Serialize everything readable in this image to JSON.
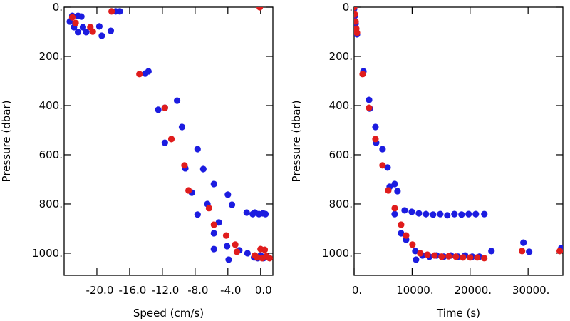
{
  "chart_data": [
    {
      "type": "scatter",
      "xlabel": "Speed (cm/s)",
      "ylabel": "Pressure (dbar)",
      "xlim": [
        -24,
        1.5
      ],
      "ylim": [
        0,
        1090
      ],
      "y_inverted": true,
      "xticks": [
        {
          "value": -20,
          "label": "-20.0"
        },
        {
          "value": -16,
          "label": "-16.0"
        },
        {
          "value": -12,
          "label": "-12.0"
        },
        {
          "value": -8,
          "label": "-8.0"
        },
        {
          "value": -4,
          "label": "-4.0"
        },
        {
          "value": 0,
          "label": "0.0"
        }
      ],
      "yticks": [
        {
          "value": 0,
          "label": "0."
        },
        {
          "value": 200,
          "label": "200."
        },
        {
          "value": 400,
          "label": "400."
        },
        {
          "value": 600,
          "label": "600."
        },
        {
          "value": 800,
          "label": "800."
        },
        {
          "value": 1000,
          "label": "1000."
        }
      ],
      "series": [
        {
          "color": "#1c1ce0",
          "x": [
            -23.3,
            -23,
            -22.3,
            -22.8,
            -21.9,
            -21.7,
            -21.3,
            -22.3,
            -19.7,
            -19.4,
            -18.3,
            -17.7,
            -17.2,
            -14.1,
            -13.7,
            -12.5,
            -11.7,
            -11.7,
            -10.2,
            -9.6,
            -9.2,
            -8.4,
            -7.7,
            -7.7,
            -7,
            -6.5,
            -5.7,
            -5.7,
            -5.1,
            -4,
            -3.5,
            -5.7,
            -4.1,
            -3.9,
            -2.6,
            -1.7,
            -1.6,
            -0.96,
            -0.7,
            -0.2,
            0.3,
            0.6,
            -0.8,
            -0.35,
            0,
            0.35,
            0.8
          ],
          "y": [
            58,
            35,
            35,
            81,
            38,
            81,
            101,
            101,
            78,
            116,
            96,
            17,
            17,
            270,
            261,
            417,
            409,
            551,
            380,
            487,
            655,
            754,
            577,
            843,
            658,
            800,
            719,
            919,
            875,
            762,
            803,
            983,
            971,
            1026,
            988,
            835,
            1000,
            841,
            835,
            841,
            838,
            841,
            1017,
            1020,
            1009,
            1020,
            1014
          ]
        },
        {
          "color": "#e01c1c",
          "x": [
            -23,
            -22.6,
            -20.8,
            -20.5,
            -18.2,
            -14.8,
            -11.7,
            -10.9,
            -9.3,
            -8.8,
            -6.3,
            -5.7,
            -4.2,
            -3.1,
            -2.9,
            -0.1,
            0,
            0.5,
            -0.7,
            -0.4,
            0.2,
            0.7,
            1.1
          ],
          "y": [
            41,
            64,
            81,
            99,
            17,
            272,
            409,
            536,
            643,
            745,
            817,
            884,
            928,
            965,
            994,
            0,
            983,
            986,
            1009,
            1017,
            1020,
            1012,
            1020
          ]
        }
      ]
    },
    {
      "type": "scatter",
      "xlabel": "Time (s)",
      "ylabel": "Pressure (dbar)",
      "xlim": [
        0,
        36000
      ],
      "ylim": [
        0,
        1090
      ],
      "y_inverted": true,
      "xticks": [
        {
          "value": 0,
          "label": "0."
        },
        {
          "value": 10000,
          "label": "10000."
        },
        {
          "value": 20000,
          "label": "20000."
        },
        {
          "value": 30000,
          "label": "30000."
        }
      ],
      "yticks": [
        {
          "value": 0,
          "label": "0."
        },
        {
          "value": 200,
          "label": "200."
        },
        {
          "value": 400,
          "label": "400."
        },
        {
          "value": 600,
          "label": "600."
        },
        {
          "value": 800,
          "label": "800."
        },
        {
          "value": 1000,
          "label": "1000."
        }
      ],
      "series": [
        {
          "color": "#1c1ce0",
          "x": [
            0,
            120,
            250,
            370,
            490,
            1600,
            2580,
            2700,
            3680,
            3800,
            4900,
            5770,
            6130,
            7000,
            7000,
            7480,
            8100,
            8710,
            8960,
            9940,
            10550,
            11170,
            10670,
            11780,
            12400,
            13000,
            13620,
            14230,
            14850,
            15460,
            16070,
            16690,
            17300,
            17910,
            18530,
            19140,
            19750,
            20370,
            20980,
            21600,
            22450,
            23680,
            29200,
            30180,
            35700
          ],
          "y": [
            6,
            35,
            67,
            101,
            110,
            261,
            377,
            412,
            487,
            551,
            577,
            652,
            730,
            719,
            841,
            748,
            919,
            826,
            945,
            832,
            991,
            838,
            1026,
            1009,
            841,
            1014,
            843,
            1009,
            841,
            1014,
            846,
            1009,
            841,
            1014,
            843,
            1009,
            841,
            1014,
            841,
            1014,
            841,
            991,
            957,
            994,
            980
          ]
        },
        {
          "color": "#e01c1c",
          "x": [
            0,
            120,
            250,
            370,
            490,
            1470,
            2580,
            3680,
            4900,
            5890,
            7000,
            8100,
            8960,
            10060,
            11410,
            12640,
            13870,
            15090,
            16320,
            17550,
            18770,
            20000,
            21230,
            22450,
            28950,
            35460
          ],
          "y": [
            0,
            29,
            58,
            87,
            104,
            272,
            409,
            536,
            643,
            745,
            817,
            884,
            928,
            965,
            1000,
            1006,
            1009,
            1014,
            1012,
            1014,
            1017,
            1017,
            1017,
            1020,
            991,
            991
          ]
        }
      ]
    }
  ]
}
